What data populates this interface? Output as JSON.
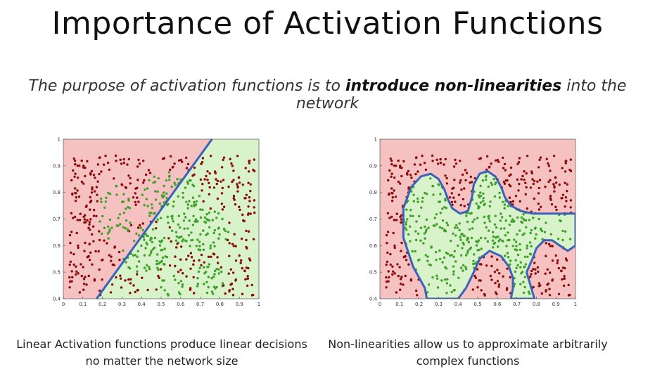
{
  "slide": {
    "title": "Importance of Activation Functions",
    "subtitle_pre": "The purpose of activation functions is to ",
    "subtitle_bold": "introduce non-linearities",
    "subtitle_post": " into the network"
  },
  "captions": {
    "left": "Linear Activation functions produce linear decisions no matter the network size",
    "right": "Non-linearities allow us to approximate arbitrarily complex functions"
  },
  "colors": {
    "red_region": "#f6c1c1",
    "green_region": "#d8f2c9",
    "red_point": "#8c0a0a",
    "green_point": "#3fa02b",
    "boundary": "#3a62b8"
  },
  "chart_data": [
    {
      "type": "scatter",
      "title": "",
      "xlabel": "",
      "ylabel": "",
      "xlim": [
        0,
        1
      ],
      "ylim": [
        0.4,
        1
      ],
      "x_ticks": [
        "0",
        "0.1",
        "0.2",
        "0.3",
        "0.4",
        "0.5",
        "0.6",
        "0.7",
        "0.8",
        "0.9",
        "1"
      ],
      "y_ticks": [
        "0.4",
        "0.5",
        "0.6",
        "0.7",
        "0.8",
        "0.9",
        "1"
      ],
      "boundary": "linear",
      "boundary_line": [
        [
          0.17,
          0.4
        ],
        [
          0.76,
          1.0
        ]
      ],
      "series": [
        {
          "class": "red",
          "count": 320
        },
        {
          "class": "green",
          "count": 380
        }
      ]
    },
    {
      "type": "scatter",
      "title": "",
      "xlabel": "",
      "ylabel": "",
      "xlim": [
        0,
        1
      ],
      "ylim": [
        0.4,
        1
      ],
      "x_ticks": [
        "0",
        "0.1",
        "0.2",
        "0.3",
        "0.4",
        "0.5",
        "0.6",
        "0.7",
        "0.8",
        "0.9",
        "1"
      ],
      "y_ticks": [
        "0.4",
        "0.5",
        "0.6",
        "0.7",
        "0.8",
        "0.9",
        "1"
      ],
      "boundary": "non-linear",
      "boundary_polygon": [
        [
          0.24,
          0.4
        ],
        [
          0.23,
          0.44
        ],
        [
          0.17,
          0.52
        ],
        [
          0.12,
          0.63
        ],
        [
          0.12,
          0.74
        ],
        [
          0.16,
          0.82
        ],
        [
          0.21,
          0.86
        ],
        [
          0.26,
          0.87
        ],
        [
          0.3,
          0.85
        ],
        [
          0.33,
          0.81
        ],
        [
          0.35,
          0.77
        ],
        [
          0.37,
          0.74
        ],
        [
          0.41,
          0.72
        ],
        [
          0.45,
          0.73
        ],
        [
          0.47,
          0.78
        ],
        [
          0.48,
          0.83
        ],
        [
          0.51,
          0.87
        ],
        [
          0.55,
          0.88
        ],
        [
          0.59,
          0.86
        ],
        [
          0.62,
          0.82
        ],
        [
          0.64,
          0.78
        ],
        [
          0.67,
          0.75
        ],
        [
          0.72,
          0.73
        ],
        [
          0.78,
          0.72
        ],
        [
          0.85,
          0.72
        ],
        [
          0.9,
          0.72
        ],
        [
          0.98,
          0.72
        ],
        [
          1.0,
          0.72
        ],
        [
          1.0,
          0.6
        ],
        [
          0.96,
          0.58
        ],
        [
          0.92,
          0.6
        ],
        [
          0.88,
          0.62
        ],
        [
          0.84,
          0.62
        ],
        [
          0.8,
          0.59
        ],
        [
          0.78,
          0.55
        ],
        [
          0.75,
          0.5
        ],
        [
          0.77,
          0.45
        ],
        [
          0.79,
          0.4
        ],
        [
          0.67,
          0.4
        ],
        [
          0.68,
          0.44
        ],
        [
          0.68,
          0.48
        ],
        [
          0.66,
          0.52
        ],
        [
          0.62,
          0.56
        ],
        [
          0.56,
          0.58
        ],
        [
          0.51,
          0.55
        ],
        [
          0.48,
          0.5
        ],
        [
          0.44,
          0.44
        ],
        [
          0.4,
          0.4
        ]
      ],
      "series": [
        {
          "class": "red",
          "count": 320
        },
        {
          "class": "green",
          "count": 380
        }
      ]
    }
  ]
}
